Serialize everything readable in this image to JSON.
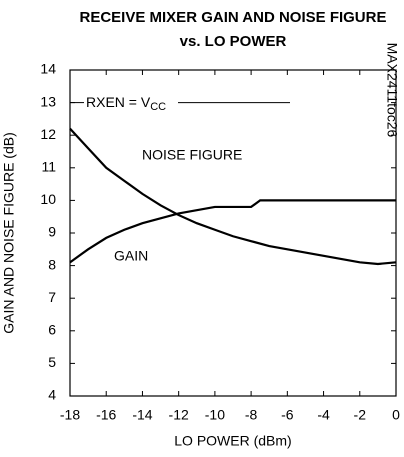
{
  "chart_data": {
    "type": "line",
    "title": [
      "RECEIVE MIXER GAIN AND NOISE FIGURE",
      "vs. LO POWER"
    ],
    "x_label": "LO POWER (dBm)",
    "y_label": "GAIN AND NOISE FIGURE (dB)",
    "annotations": [
      {
        "text": "RXEN = V",
        "sub": "CC"
      },
      {
        "text": "NOISE FIGURE"
      },
      {
        "text": "GAIN"
      },
      {
        "text": "MAX2411toc26"
      }
    ],
    "xlim": [
      -18,
      0
    ],
    "xticks": [
      -18,
      -16,
      -14,
      -12,
      -10,
      -8,
      -6,
      -4,
      -2,
      0
    ],
    "ylim": [
      4,
      14
    ],
    "yticks": [
      4,
      5,
      6,
      7,
      8,
      9,
      10,
      11,
      12,
      13,
      14
    ],
    "grid": false,
    "series": [
      {
        "name": "NOISE FIGURE",
        "color": "#000000",
        "x": [
          -18,
          -17,
          -16,
          -15,
          -14,
          -13,
          -12,
          -11,
          -10,
          -9,
          -8,
          -7,
          -6,
          -5,
          -4,
          -3,
          -2,
          -1,
          0
        ],
        "values": [
          12.2,
          11.6,
          11.0,
          10.6,
          10.2,
          9.85,
          9.55,
          9.3,
          9.1,
          8.9,
          8.75,
          8.6,
          8.5,
          8.4,
          8.3,
          8.2,
          8.1,
          8.05,
          8.1
        ]
      },
      {
        "name": "GAIN",
        "color": "#000000",
        "x": [
          -18,
          -17,
          -16,
          -15,
          -14,
          -13,
          -12,
          -11,
          -10,
          -9,
          -8,
          -7.5,
          -7,
          -4,
          0
        ],
        "values": [
          8.1,
          8.5,
          8.85,
          9.1,
          9.3,
          9.45,
          9.6,
          9.7,
          9.8,
          9.8,
          9.8,
          10.0,
          10.0,
          10.0,
          10.0
        ]
      }
    ]
  }
}
